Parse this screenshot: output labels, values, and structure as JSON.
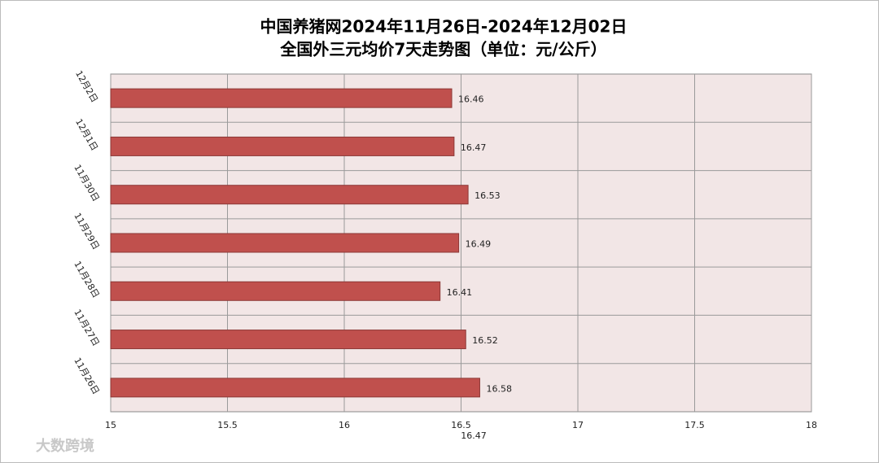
{
  "chart_data": {
    "type": "barh",
    "title": "中国养猪网2024年11月26日-2024年12月02日",
    "subtitle": "全国外三元均价7天走势图（单位：元/公斤）",
    "categories": [
      "12月2日",
      "12月1日",
      "11月30日",
      "11月29日",
      "11月28日",
      "11月27日",
      "11月26日"
    ],
    "values": [
      16.46,
      16.47,
      16.53,
      16.49,
      16.41,
      16.52,
      16.58
    ],
    "color": "#c0504d",
    "xlim": [
      15,
      18
    ],
    "xticks": [
      15,
      15.5,
      16,
      16.5,
      17,
      17.5,
      18
    ],
    "grid": true,
    "annotation": 16.47,
    "watermark": "大数跨境"
  }
}
